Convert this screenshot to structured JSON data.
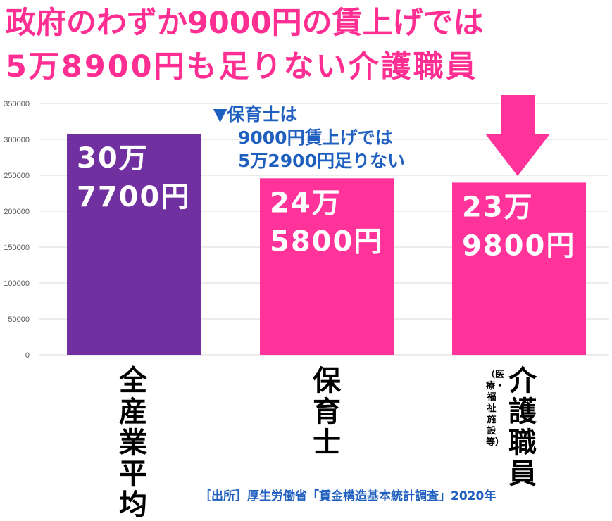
{
  "headline": {
    "line1": "政府のわずか9000円の賃上げでは",
    "line2": "5万8900円も足りない介護職員"
  },
  "note": {
    "line1": "▼保育士は",
    "line2": "9000円賃上げでは",
    "line3": "5万2900円足りない"
  },
  "source": "［出所］厚生労働省「賃金構造基本統計調査」2020年",
  "colors": {
    "headline": "#ff2e92",
    "bar_avg": "#7030a0",
    "bar_pink": "#ff3399",
    "note": "#1f5fbf",
    "arrow": "#ff3399"
  },
  "chart_data": {
    "type": "bar",
    "categories": [
      "全産業平均",
      "保育士",
      "介護職員"
    ],
    "category_sub": [
      "",
      "",
      "（医療・福祉施設等）"
    ],
    "values": [
      307700,
      245800,
      239800
    ],
    "value_labels": [
      [
        "30万",
        "7700円"
      ],
      [
        "24万",
        "5800円"
      ],
      [
        "23万",
        "9800円"
      ]
    ],
    "bar_colors": [
      "#7030a0",
      "#ff3399",
      "#ff3399"
    ],
    "yticks": [
      0,
      50000,
      100000,
      150000,
      200000,
      250000,
      300000,
      350000
    ],
    "ylim": [
      0,
      350000
    ],
    "grid": true,
    "arrow_over": "介護職員"
  }
}
